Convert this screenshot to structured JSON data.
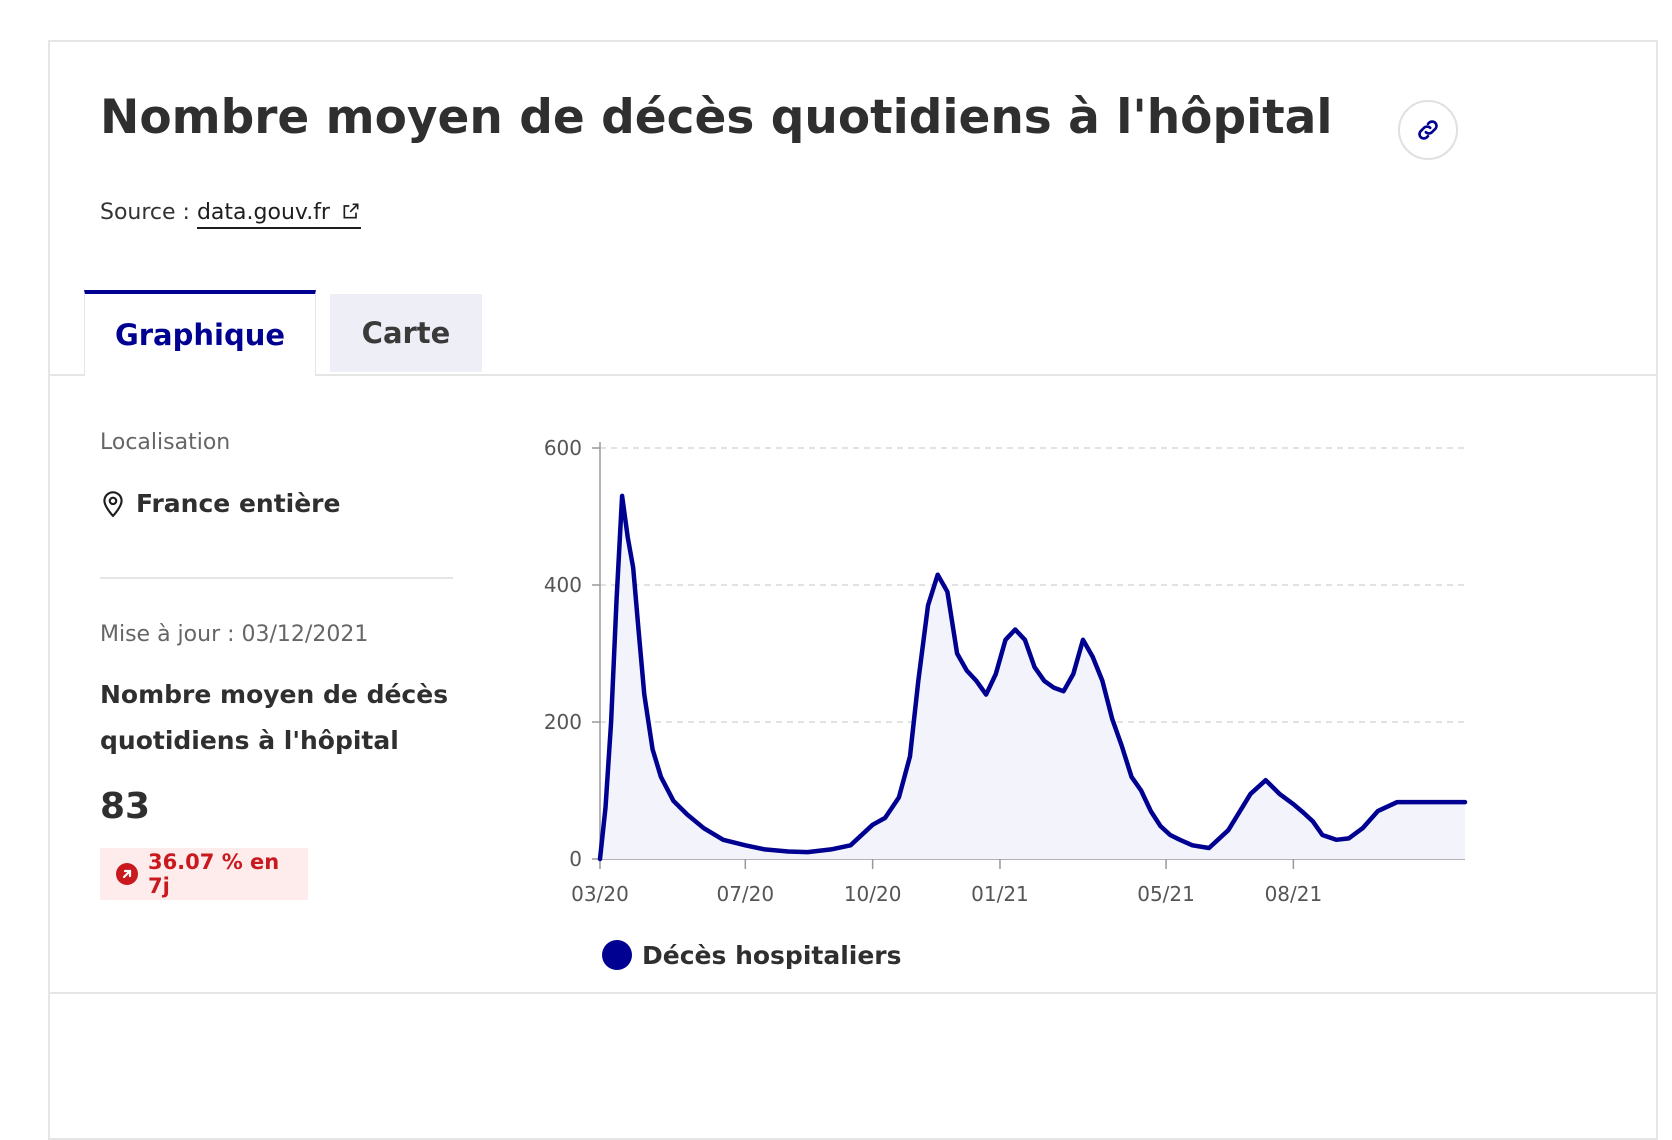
{
  "header": {
    "title": "Nombre moyen de décès quotidiens à l'hôpital",
    "source_prefix": "Source :",
    "source_link": "data.gouv.fr"
  },
  "tabs": [
    {
      "label": "Graphique",
      "active": true
    },
    {
      "label": "Carte",
      "active": false
    }
  ],
  "sidebar": {
    "location_label": "Localisation",
    "location_value": "France entière",
    "update_text": "Mise à jour : 03/12/2021",
    "indicator_name": "Nombre moyen de décès quotidiens à l'hôpital",
    "value": "83",
    "trend_text": "36.07 % en 7j",
    "trend_color": "#c9191e"
  },
  "colors": {
    "accent": "#000091",
    "area_fill": "#f3f3fb",
    "grid": "#d8d8d8"
  },
  "chart_data": {
    "type": "area",
    "y_ticks": [
      0,
      200,
      400,
      600
    ],
    "x_ticks": [
      "03/20",
      "07/20",
      "10/20",
      "01/21",
      "05/21",
      "08/21"
    ],
    "ylim": [
      0,
      600
    ],
    "grid": true,
    "legend_position": "bottom",
    "series": [
      {
        "name": "Décès hospitaliers",
        "x": [
          "2020-03-18",
          "2020-03-22",
          "2020-03-26",
          "2020-03-30",
          "2020-04-03",
          "2020-04-07",
          "2020-04-11",
          "2020-04-15",
          "2020-04-19",
          "2020-04-25",
          "2020-05-01",
          "2020-05-10",
          "2020-05-20",
          "2020-06-01",
          "2020-06-15",
          "2020-07-01",
          "2020-07-15",
          "2020-08-01",
          "2020-08-15",
          "2020-09-01",
          "2020-09-15",
          "2020-10-01",
          "2020-10-10",
          "2020-10-20",
          "2020-10-28",
          "2020-11-03",
          "2020-11-10",
          "2020-11-17",
          "2020-11-24",
          "2020-12-01",
          "2020-12-08",
          "2020-12-15",
          "2020-12-22",
          "2020-12-29",
          "2021-01-05",
          "2021-01-12",
          "2021-01-19",
          "2021-01-26",
          "2021-02-02",
          "2021-02-09",
          "2021-02-16",
          "2021-02-23",
          "2021-03-02",
          "2021-03-09",
          "2021-03-16",
          "2021-03-23",
          "2021-03-30",
          "2021-04-06",
          "2021-04-13",
          "2021-04-20",
          "2021-04-27",
          "2021-05-04",
          "2021-05-11",
          "2021-05-20",
          "2021-06-01",
          "2021-06-15",
          "2021-07-01",
          "2021-07-12",
          "2021-07-22",
          "2021-08-01",
          "2021-08-08",
          "2021-08-15",
          "2021-08-22",
          "2021-09-01",
          "2021-09-10",
          "2021-09-20",
          "2021-10-01",
          "2021-10-15",
          "2021-11-01",
          "2021-11-15",
          "2021-11-25",
          "2021-12-03"
        ],
        "values": [
          0,
          75,
          200,
          380,
          530,
          470,
          425,
          330,
          240,
          160,
          120,
          85,
          65,
          45,
          28,
          20,
          14,
          11,
          10,
          14,
          20,
          50,
          60,
          90,
          150,
          260,
          370,
          415,
          390,
          300,
          275,
          260,
          240,
          270,
          320,
          335,
          320,
          280,
          260,
          250,
          245,
          270,
          320,
          295,
          260,
          205,
          165,
          120,
          100,
          70,
          48,
          35,
          28,
          20,
          16,
          42,
          95,
          115,
          95,
          80,
          68,
          55,
          35,
          28,
          30,
          45,
          70,
          83,
          83,
          83,
          83,
          83
        ]
      }
    ]
  }
}
